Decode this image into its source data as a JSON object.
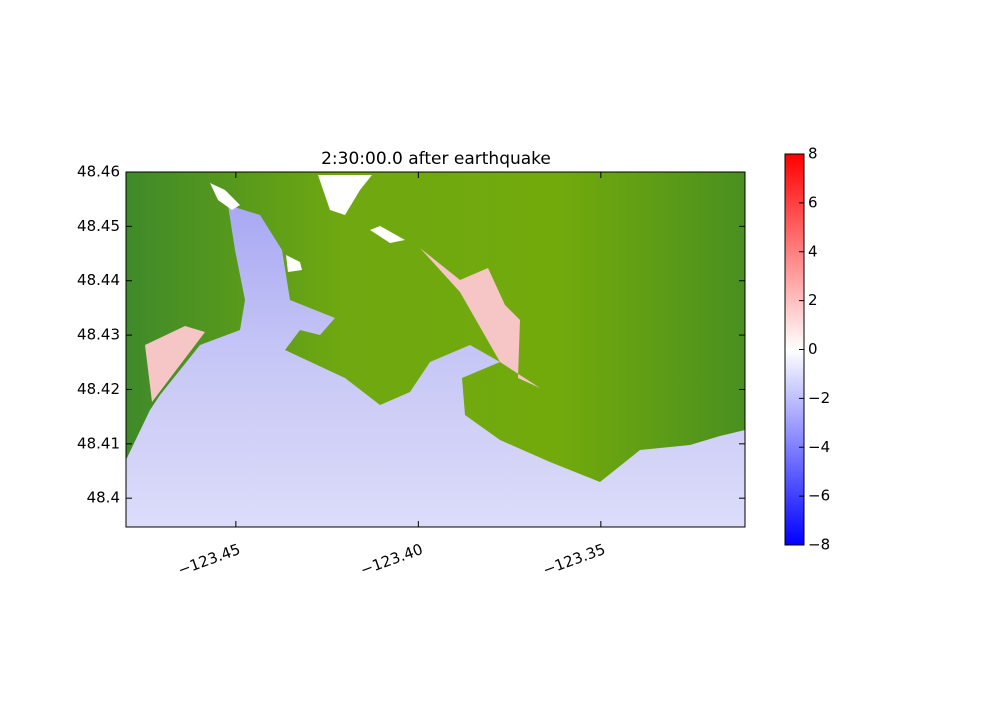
{
  "chart_data": {
    "type": "heatmap-map",
    "title": "2:30:00.0 after earthquake",
    "xlim": [
      -123.4801,
      -123.3105
    ],
    "ylim": [
      48.3947,
      48.46
    ],
    "xticks": [
      {
        "value": -123.45,
        "label": "−123.45"
      },
      {
        "value": -123.4,
        "label": "−123.40"
      },
      {
        "value": -123.35,
        "label": "−123.35"
      }
    ],
    "yticks": [
      48.4,
      48.41,
      48.42,
      48.43,
      48.44,
      48.45,
      48.46
    ],
    "colorbar": {
      "lim": [
        -8,
        8
      ],
      "colormap": [
        "#0000ff",
        "#ffffff",
        "#ff0000"
      ],
      "ticks": [
        {
          "value": -8,
          "label": "−8"
        },
        {
          "value": -6,
          "label": "−6"
        },
        {
          "value": -4,
          "label": "−4"
        },
        {
          "value": -2,
          "label": "−2"
        },
        0,
        2,
        4,
        6,
        8
      ]
    }
  }
}
